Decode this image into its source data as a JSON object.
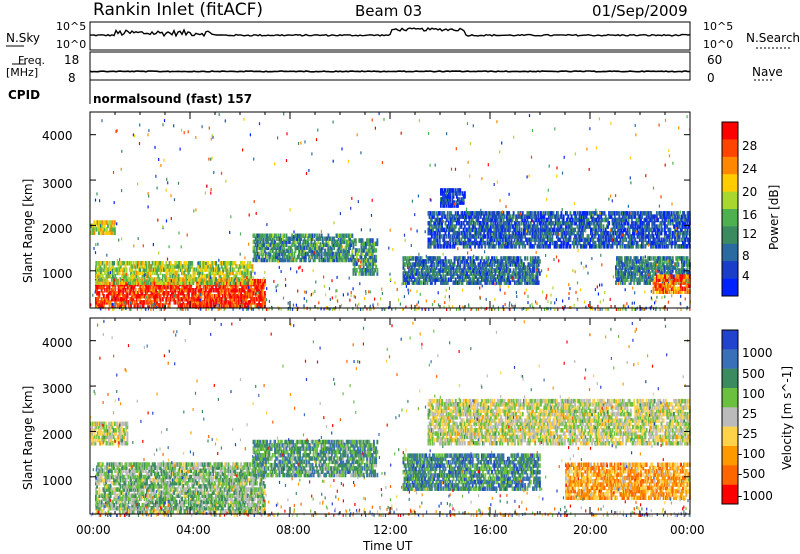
{
  "header": {
    "site": "Rankin Inlet (fitACF)",
    "beam": "Beam 03",
    "date": "01/Sep/2009"
  },
  "strip": {
    "nsky_label": "N.Sky",
    "nsky_ticks": [
      "10^5",
      "10^0"
    ],
    "nsearch_label": "N.Search",
    "nsearch_ticks": [
      "10^5",
      "10^0"
    ],
    "freq_label": "Freq.",
    "freq_unit": "[MHz]",
    "freq_ticks": [
      "18",
      "8"
    ],
    "nave_label": "Nave",
    "nave_ticks": [
      "60",
      "0"
    ],
    "cpid_label": "CPID",
    "cpid_value": "normalsound (fast) 157"
  },
  "chart_data": [
    {
      "type": "heatmap",
      "name": "power",
      "ylabel": "Slant Range [km]",
      "yticks": [
        "4000",
        "3000",
        "2000",
        "1000"
      ],
      "ylim": [
        180,
        4500
      ],
      "xlim": [
        0,
        24
      ],
      "colorbar_label": "Power [dB]",
      "colorbar_ticks": [
        "28",
        "24",
        "20",
        "16",
        "12",
        "8",
        "4"
      ],
      "colorbar_colors": [
        "#ff0000",
        "#ff4400",
        "#ff8800",
        "#ffcc00",
        "#a8d830",
        "#4fb050",
        "#3c8a60",
        "#2a6aa0",
        "#1a3ec8",
        "#0022ff"
      ],
      "features": [
        {
          "t0": 0.2,
          "t1": 7.0,
          "r0": 200,
          "r1": 800,
          "level": 0.9
        },
        {
          "t0": 0.2,
          "t1": 6.5,
          "r0": 700,
          "r1": 1200,
          "level": 0.55
        },
        {
          "t0": 0.0,
          "t1": 1.0,
          "r0": 1800,
          "r1": 2100,
          "level": 0.6
        },
        {
          "t0": 6.5,
          "t1": 10.5,
          "r0": 1200,
          "r1": 1800,
          "level": 0.35
        },
        {
          "t0": 10.5,
          "t1": 11.5,
          "r0": 900,
          "r1": 1700,
          "level": 0.35
        },
        {
          "t0": 13.5,
          "t1": 24.0,
          "r0": 1500,
          "r1": 2300,
          "level": 0.2
        },
        {
          "t0": 14.0,
          "t1": 15.0,
          "r0": 2400,
          "r1": 2800,
          "level": 0.15
        },
        {
          "t0": 12.5,
          "t1": 18.0,
          "r0": 700,
          "r1": 1300,
          "level": 0.25
        },
        {
          "t0": 21.0,
          "t1": 24.0,
          "r0": 700,
          "r1": 1300,
          "level": 0.3
        },
        {
          "t0": 22.5,
          "t1": 24.0,
          "r0": 500,
          "r1": 900,
          "level": 0.8
        }
      ]
    },
    {
      "type": "heatmap",
      "name": "velocity",
      "ylabel": "Slant Range [km]",
      "yticks": [
        "4000",
        "3000",
        "2000",
        "1000"
      ],
      "ylim": [
        180,
        4500
      ],
      "xlim": [
        0,
        24
      ],
      "xlabel": "Time UT",
      "xticks": [
        "00:00",
        "04:00",
        "08:00",
        "12:00",
        "16:00",
        "20:00",
        "00:00"
      ],
      "colorbar_label": "Velocity [m s^-1]",
      "colorbar_ticks": [
        "1000",
        "500",
        "100",
        "25",
        "-25",
        "-100",
        "-500",
        "-1000"
      ],
      "colorbar_colors": [
        "#2244cc",
        "#3a70b8",
        "#3c8a60",
        "#6cc040",
        "#bbbbbb",
        "#ffd24a",
        "#ff9900",
        "#ff6600",
        "#ff0000"
      ],
      "features": [
        {
          "t0": 0.0,
          "t1": 1.5,
          "r0": 1700,
          "r1": 2200,
          "level": 0.5
        },
        {
          "t0": 0.2,
          "t1": 7.0,
          "r0": 200,
          "r1": 1300,
          "level": 0.6
        },
        {
          "t0": 6.5,
          "t1": 11.5,
          "r0": 1000,
          "r1": 1800,
          "level": 0.7
        },
        {
          "t0": 13.5,
          "t1": 24.0,
          "r0": 1700,
          "r1": 2700,
          "level": 0.5
        },
        {
          "t0": 12.5,
          "t1": 18.0,
          "r0": 700,
          "r1": 1500,
          "level": 0.75
        },
        {
          "t0": 19.0,
          "t1": 24.0,
          "r0": 500,
          "r1": 1300,
          "level": 0.3
        }
      ]
    }
  ]
}
